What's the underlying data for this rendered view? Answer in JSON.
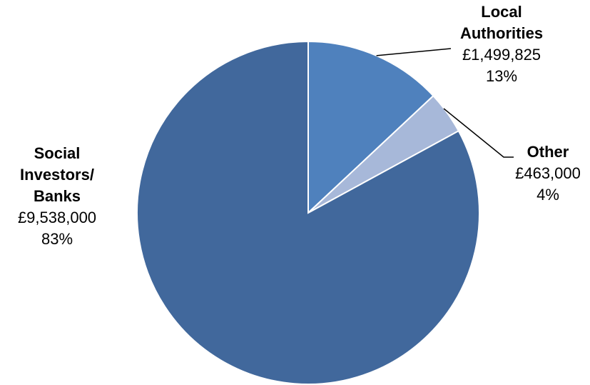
{
  "chart_data": {
    "type": "pie",
    "slices": [
      {
        "name_lines": [
          "Local",
          "Authorities"
        ],
        "value": 1499825,
        "value_label": "£1,499,825",
        "percent_label": "13%",
        "color": "#4f81bd"
      },
      {
        "name_lines": [
          "Other"
        ],
        "value": 463000,
        "value_label": "£463,000",
        "percent_label": "4%",
        "color": "#a7b8d9"
      },
      {
        "name_lines": [
          "Social",
          "Investors/",
          "Banks"
        ],
        "value": 9538000,
        "value_label": "£9,538,000",
        "percent_label": "83%",
        "color": "#41689c"
      }
    ],
    "start": "12 o'clock",
    "direction": "clockwise",
    "legend": "none",
    "labels": "outside with leader lines"
  }
}
